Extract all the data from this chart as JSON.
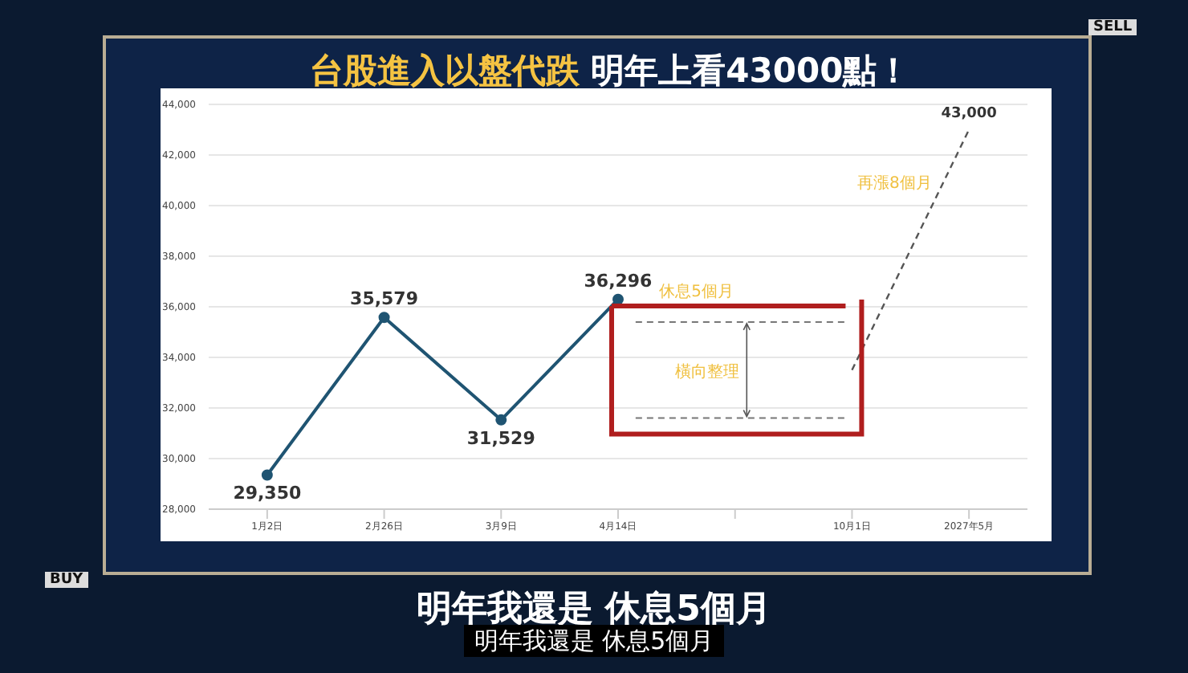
{
  "chart_data": {
    "type": "line",
    "title": "台股進入以盤代跌 明年上看43000點！",
    "subtitle": "明年我還是 休息5個月",
    "categories": [
      "1月2日",
      "2月26日",
      "3月9日",
      "4月14日",
      null,
      "10月1日",
      "2027年5月"
    ],
    "series": [
      {
        "color": "#1f5472",
        "values": [
          29350,
          35579,
          31529,
          36296,
          null,
          null,
          null
        ],
        "value_labels": [
          "29,350",
          "35,579",
          "31,529",
          "36,296",
          null,
          null,
          null
        ]
      },
      {
        "color": "#555555",
        "values": [
          null,
          null,
          null,
          null,
          null,
          33500,
          43000
        ],
        "value_labels": [
          null,
          null,
          null,
          null,
          null,
          null,
          "43,000"
        ],
        "line_style": "dashed",
        "marker": "none"
      }
    ],
    "ylim": [
      28000,
      44000
    ],
    "yticks": [
      {
        "value": 28000,
        "label": "28,000"
      },
      {
        "value": 30000,
        "label": "30,000"
      },
      {
        "value": 32000,
        "label": "32,000"
      },
      {
        "value": 34000,
        "label": "34,000"
      },
      {
        "value": 36000,
        "label": "36,000"
      },
      {
        "value": 38000,
        "label": "38,000"
      },
      {
        "value": 40000,
        "label": "40,000"
      },
      {
        "value": 42000,
        "label": "42,000"
      },
      {
        "value": 44000,
        "label": "44,000"
      }
    ],
    "grid": "y",
    "marker": "circle",
    "line_style": "solid",
    "ref_lines": [
      {
        "axis": "y",
        "value": 35400,
        "color": "#777777",
        "line_style": "dashed"
      },
      {
        "axis": "y",
        "value": 31600,
        "color": "#777777",
        "line_style": "dashed"
      }
    ],
    "annotations": [
      "休息5個月",
      "橫向整理",
      "再漲8個月",
      "明年我還是 休息5個月",
      "SELL",
      "BUY"
    ]
  }
}
